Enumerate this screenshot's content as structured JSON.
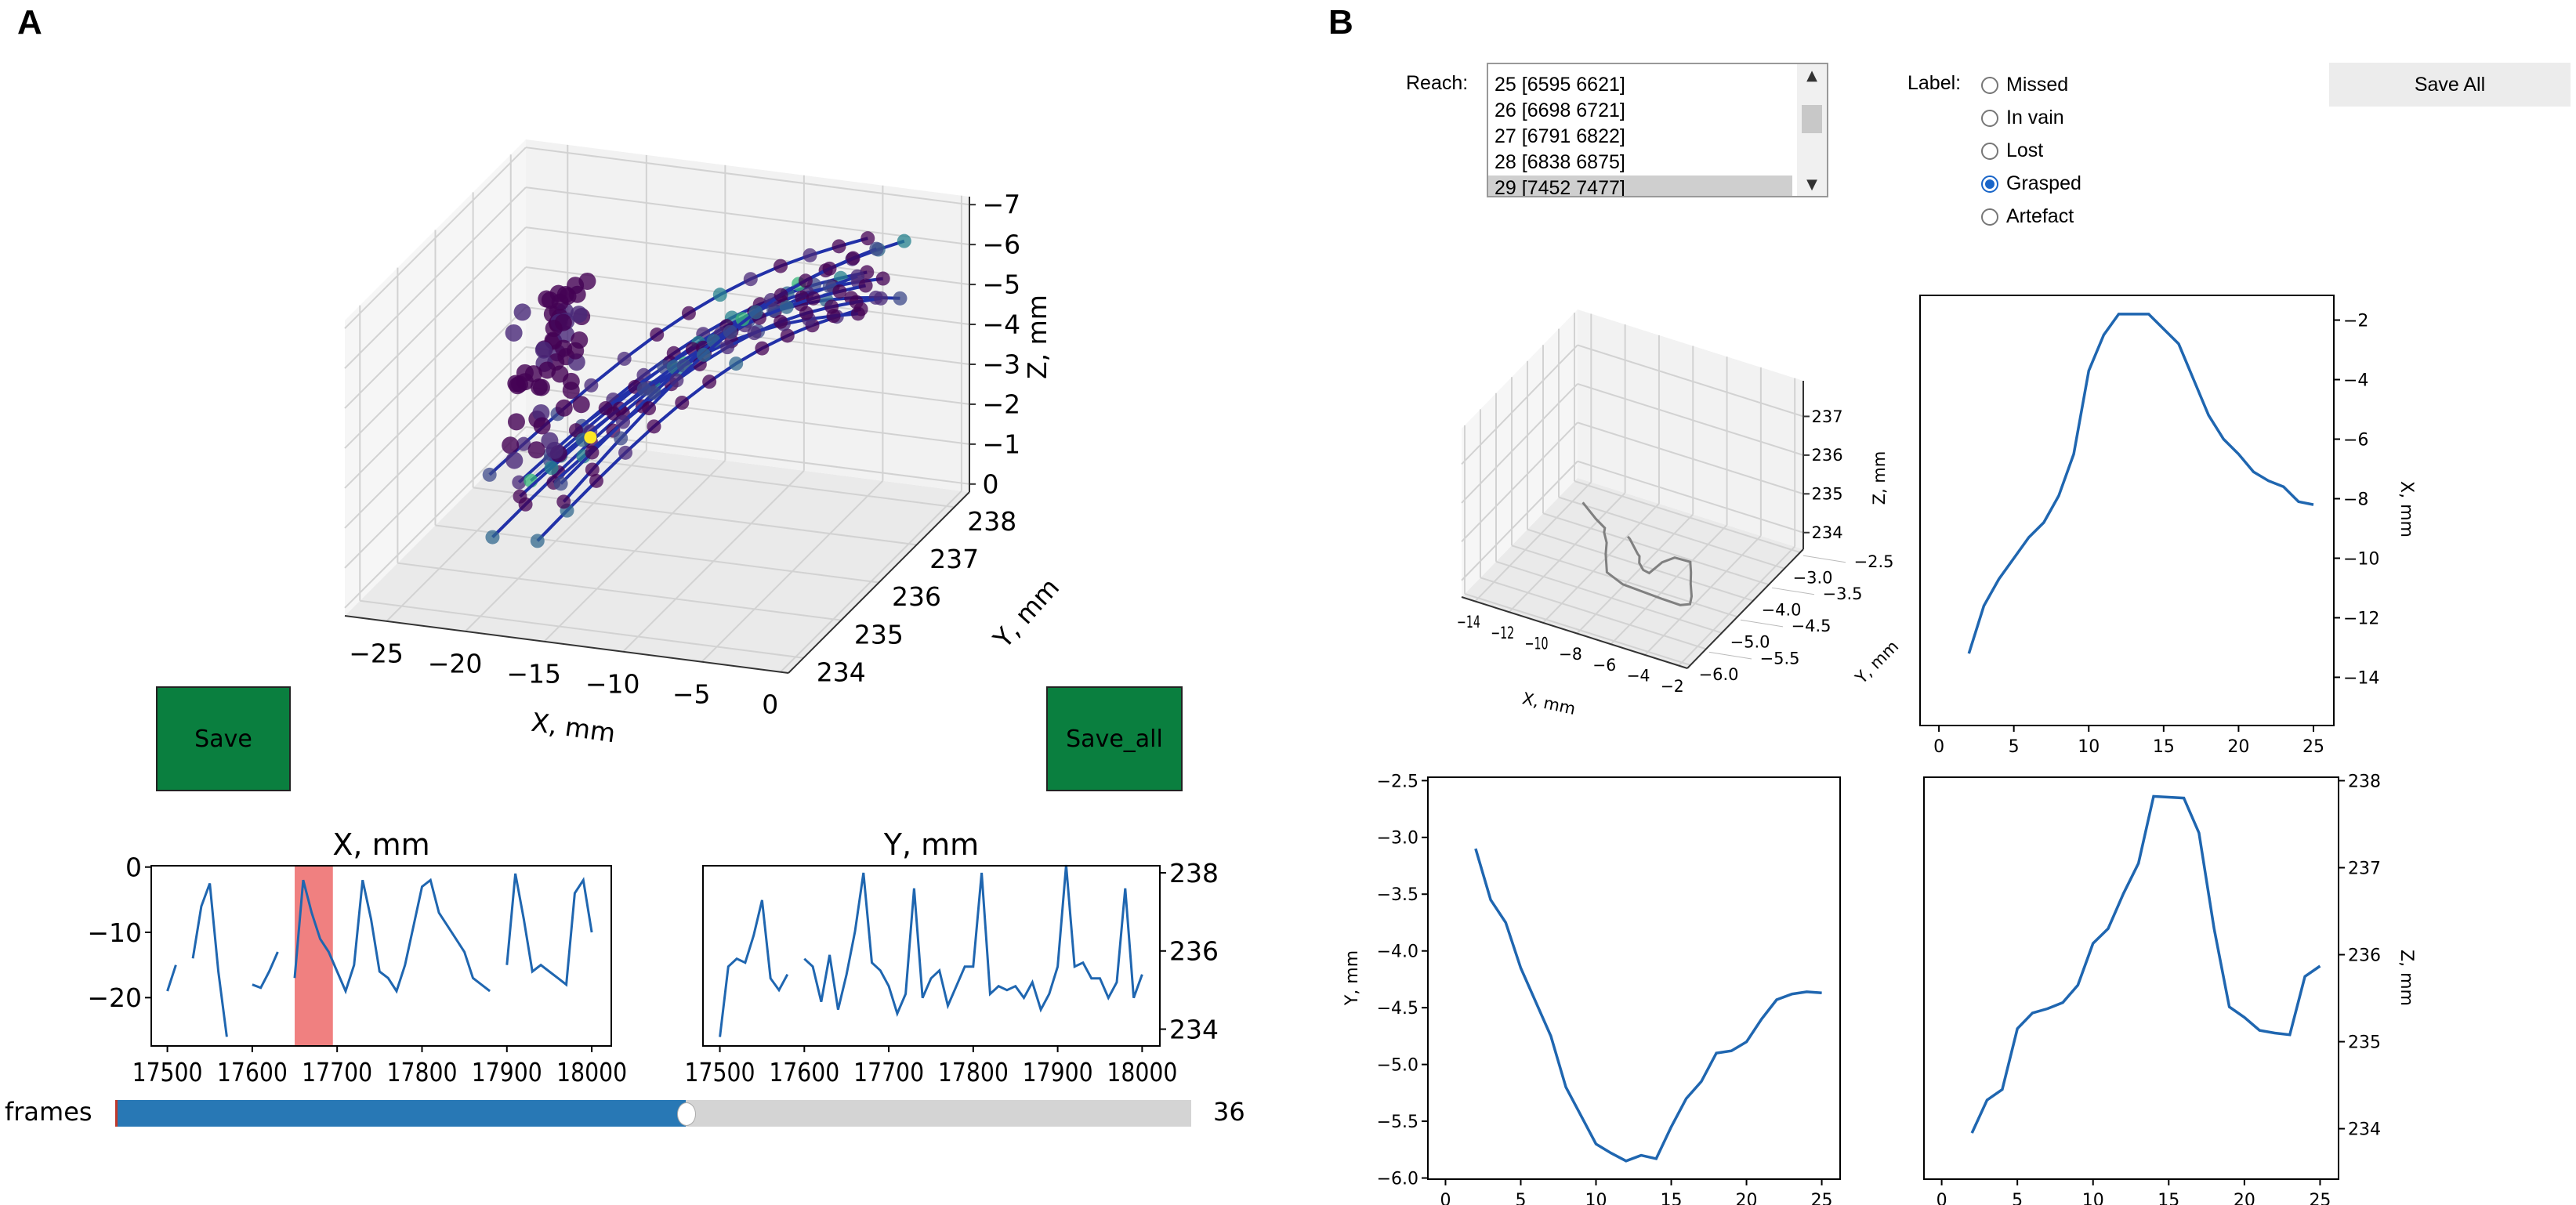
{
  "panel_labels": {
    "a": "A",
    "b": "B"
  },
  "panel_a": {
    "plot3d": {
      "xlabel": "X, mm",
      "ylabel": "Y, mm",
      "zlabel": "Z, mm",
      "xticks": [
        "−25",
        "−20",
        "−15",
        "−10",
        "−5",
        "0"
      ],
      "xtick_values": [
        -25,
        -20,
        -15,
        -10,
        -5,
        0
      ],
      "yticks": [
        "234",
        "235",
        "236",
        "237",
        "238"
      ],
      "ytick_values": [
        234,
        235,
        236,
        237,
        238
      ],
      "zticks": [
        "0",
        "−1",
        "−2",
        "−3",
        "−4",
        "−5",
        "−6",
        "−7"
      ],
      "ztick_values": [
        0,
        -1,
        -2,
        -3,
        -4,
        -5,
        -6,
        -7
      ],
      "point_colors": [
        "#440154",
        "#482878",
        "#3e4989",
        "#31688e",
        "#26828e",
        "#35b779",
        "#fde725"
      ],
      "line_color": "#2231a8"
    },
    "save_button": "Save",
    "save_all_button": "Save_all",
    "button_color": "#0a7f3f",
    "slider": {
      "label": "frames",
      "value": "36",
      "fill_fraction": 0.53
    }
  },
  "panel_b": {
    "reach_label": "Reach:",
    "reach_items": [
      "25 [6595 6621]",
      "26 [6698 6721]",
      "27 [6791 6822]",
      "28 [6838 6875]",
      "29 [7452 7477]"
    ],
    "selected_reach": "29 [7452 7477]",
    "label_label": "Label:",
    "label_options": [
      "Missed",
      "In vain",
      "Lost",
      "Grasped",
      "Artefact"
    ],
    "selected_label": "Grasped",
    "save_all_button": "Save All",
    "plot3d": {
      "xlabel": "X, mm",
      "ylabel": "Y, mm",
      "zlabel": "Z, mm",
      "xticks": [
        "−14",
        "−12",
        "−10",
        "−8",
        "−6",
        "−4",
        "−2"
      ],
      "xtick_values": [
        -14,
        -12,
        -10,
        -8,
        -6,
        -4,
        -2
      ],
      "yticks": [
        "−6.0",
        "−5.5",
        "−5.0",
        "−4.5",
        "−4.0",
        "−3.5",
        "−3.0",
        "−2.5"
      ],
      "ytick_values": [
        -6.0,
        -5.5,
        -5.0,
        -4.5,
        -4.0,
        -3.5,
        -3.0,
        -2.5
      ],
      "zticks": [
        "234",
        "235",
        "236",
        "237"
      ],
      "ztick_values": [
        234,
        235,
        236,
        237
      ],
      "line_color": "#808080"
    }
  },
  "chart_data": [
    {
      "type": "line",
      "title": "X, mm",
      "xlabel": "",
      "ylabel": "",
      "xlim": [
        17481,
        18023
      ],
      "ylim": [
        -27.4,
        0.2
      ],
      "xticks": [
        17500,
        17600,
        17700,
        17800,
        17900,
        18000
      ],
      "xtick_labels": [
        "17500",
        "17600",
        "17700",
        "17800",
        "17900",
        "18000"
      ],
      "yticks": [
        0,
        -10,
        -20
      ],
      "ytick_labels": [
        "0",
        "−10",
        "−20"
      ],
      "highlight_span": [
        17650,
        17695
      ],
      "highlight_color": "#f08080",
      "color": "#1f66b0",
      "x": [
        17500,
        17510,
        17520,
        17530,
        17540,
        17550,
        17560,
        17570,
        17580,
        17590,
        17600,
        17610,
        17620,
        17630,
        17640,
        17650,
        17660,
        17670,
        17680,
        17690,
        17700,
        17710,
        17720,
        17730,
        17740,
        17750,
        17760,
        17770,
        17780,
        17790,
        17800,
        17810,
        17820,
        17830,
        17840,
        17850,
        17860,
        17870,
        17880,
        17890,
        17900,
        17910,
        17920,
        17930,
        17940,
        17950,
        17960,
        17970,
        17980,
        17990,
        18000
      ],
      "y": [
        -19,
        -15,
        null,
        -14,
        -6,
        -2.5,
        -16,
        -26,
        null,
        null,
        -18,
        -18.5,
        -16,
        -13,
        null,
        -17,
        -2,
        -7,
        -11,
        -13,
        -16,
        -19,
        -15,
        -2,
        -8,
        -16,
        -17,
        -19,
        -15,
        -9,
        -3,
        -2,
        -7,
        -9,
        -11,
        -13,
        -17,
        -18,
        -19,
        null,
        -15,
        -1,
        -8,
        -16,
        -15,
        -16,
        -17,
        -18,
        -4,
        -2,
        -10
      ]
    },
    {
      "type": "line",
      "title": "Y, mm",
      "xlabel": "",
      "ylabel": "",
      "xlim": [
        17480,
        18021
      ],
      "ylim": [
        233.57,
        238.18
      ],
      "xticks": [
        17500,
        17600,
        17700,
        17800,
        17900,
        18000
      ],
      "xtick_labels": [
        "17500",
        "17600",
        "17700",
        "17800",
        "17900",
        "18000"
      ],
      "yticks": [
        238,
        236,
        234
      ],
      "ytick_labels": [
        "238",
        "236",
        "234"
      ],
      "color": "#1f66b0",
      "x": [
        17500,
        17510,
        17520,
        17530,
        17540,
        17550,
        17560,
        17570,
        17580,
        17590,
        17600,
        17610,
        17620,
        17630,
        17640,
        17650,
        17660,
        17670,
        17680,
        17690,
        17700,
        17710,
        17720,
        17730,
        17740,
        17750,
        17760,
        17770,
        17780,
        17790,
        17800,
        17810,
        17820,
        17830,
        17840,
        17850,
        17860,
        17870,
        17880,
        17890,
        17900,
        17910,
        17920,
        17930,
        17940,
        17950,
        17960,
        17970,
        17980,
        17990,
        18000
      ],
      "y": [
        233.8,
        235.6,
        235.8,
        235.7,
        236.4,
        237.3,
        235.3,
        235.0,
        235.4,
        null,
        235.8,
        235.6,
        234.7,
        235.9,
        234.5,
        235.4,
        236.5,
        238.0,
        235.7,
        235.5,
        235.1,
        234.4,
        234.9,
        237.6,
        234.8,
        235.3,
        235.5,
        234.6,
        235.1,
        235.6,
        235.6,
        238.0,
        234.9,
        235.1,
        235.0,
        235.1,
        234.8,
        235.2,
        234.5,
        234.9,
        235.6,
        238.2,
        235.6,
        235.7,
        235.3,
        235.3,
        234.8,
        235.2,
        237.6,
        234.8,
        235.4
      ]
    },
    {
      "type": "line",
      "title": "",
      "xlabel": "",
      "ylabel": "X, mm",
      "xlim": [
        -1.26,
        26.36
      ],
      "ylim": [
        -15.62,
        -1.17
      ],
      "xticks": [
        0,
        5,
        10,
        15,
        20,
        25
      ],
      "xtick_labels": [
        "0",
        "5",
        "10",
        "15",
        "20",
        "25"
      ],
      "yticks": [
        -2,
        -4,
        -6,
        -8,
        -10,
        -12,
        -14
      ],
      "ytick_labels": [
        "−2",
        "−4",
        "−6",
        "−8",
        "−10",
        "−12",
        "−14"
      ],
      "color": "#1f66b0",
      "x": [
        2,
        3,
        4,
        5,
        6,
        7,
        8,
        9,
        10,
        11,
        12,
        13,
        14,
        15,
        16,
        17,
        18,
        19,
        20,
        21,
        22,
        23,
        24,
        25
      ],
      "y": [
        -13.2,
        -11.6,
        -10.7,
        -10.0,
        -9.3,
        -8.8,
        -7.9,
        -6.5,
        -3.7,
        -2.5,
        -1.8,
        -1.8,
        -1.8,
        -2.3,
        -2.8,
        -4.0,
        -5.2,
        -6.0,
        -6.5,
        -7.1,
        -7.4,
        -7.6,
        -8.1,
        -8.2
      ]
    },
    {
      "type": "line",
      "title": "",
      "xlabel": "",
      "ylabel": "Y, mm",
      "xlim": [
        -1.17,
        26.22
      ],
      "ylim": [
        -6.01,
        -2.47
      ],
      "xticks": [
        0,
        5,
        10,
        15,
        20,
        25
      ],
      "xtick_labels": [
        "0",
        "5",
        "10",
        "15",
        "20",
        "25"
      ],
      "yticks": [
        -2.5,
        -3.0,
        -3.5,
        -4.0,
        -4.5,
        -5.0,
        -5.5,
        -6.0
      ],
      "ytick_labels": [
        "−2.5",
        "−3.0",
        "−3.5",
        "−4.0",
        "−4.5",
        "−5.0",
        "−5.5",
        "−6.0"
      ],
      "color": "#1f66b0",
      "x": [
        2,
        3,
        4,
        5,
        6,
        7,
        8,
        9,
        10,
        11,
        12,
        13,
        14,
        15,
        16,
        17,
        18,
        19,
        20,
        21,
        22,
        23,
        24,
        25
      ],
      "y": [
        -3.1,
        -3.55,
        -3.75,
        -4.15,
        -4.45,
        -4.75,
        -5.2,
        -5.45,
        -5.7,
        -5.78,
        -5.85,
        -5.8,
        -5.83,
        -5.55,
        -5.3,
        -5.15,
        -4.9,
        -4.88,
        -4.8,
        -4.6,
        -4.43,
        -4.38,
        -4.36,
        -4.37
      ]
    },
    {
      "type": "line",
      "title": "",
      "xlabel": "",
      "ylabel": "Z, mm",
      "xlim": [
        -1.17,
        26.22
      ],
      "ylim": [
        233.42,
        238.04
      ],
      "xticks": [
        0,
        5,
        10,
        15,
        20,
        25
      ],
      "xtick_labels": [
        "0",
        "5",
        "10",
        "15",
        "20",
        "25"
      ],
      "yticks": [
        238,
        237,
        236,
        235,
        234
      ],
      "ytick_labels": [
        "238",
        "237",
        "236",
        "235",
        "234"
      ],
      "color": "#1f66b0",
      "x": [
        2,
        3,
        4,
        5,
        6,
        7,
        8,
        9,
        10,
        11,
        12,
        13,
        14,
        15,
        16,
        17,
        18,
        19,
        20,
        21,
        22,
        23,
        24,
        25
      ],
      "y": [
        233.95,
        234.33,
        234.45,
        235.15,
        235.33,
        235.38,
        235.45,
        235.65,
        236.13,
        236.3,
        236.7,
        237.05,
        237.82,
        237.81,
        237.8,
        237.4,
        236.3,
        235.4,
        235.28,
        235.13,
        235.1,
        235.08,
        235.75,
        235.87
      ]
    }
  ]
}
